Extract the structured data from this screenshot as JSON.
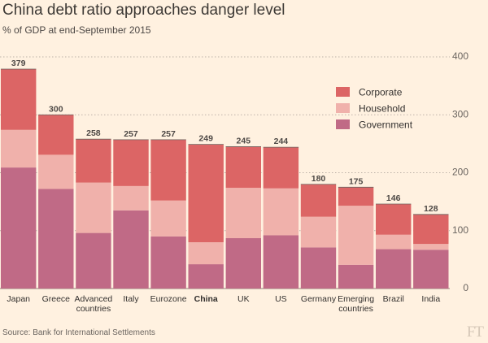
{
  "title": "China debt ratio approaches danger level",
  "subtitle": "% of GDP at end-September 2015",
  "source": "Source: Bank for International Settlements",
  "logo_text": "FT",
  "colors": {
    "Corporate": "#dc6565",
    "Household": "#f0b1ab",
    "Government": "#c06a86",
    "grid": "#bdb2a8",
    "text": "#33302e"
  },
  "chart_data": {
    "type": "bar",
    "stacked": true,
    "categories": [
      "Japan",
      "Greece",
      "Advanced countries",
      "Italy",
      "Eurozone",
      "China",
      "UK",
      "US",
      "Germany",
      "Emerging countries",
      "Brazil",
      "India"
    ],
    "category_lines": [
      [
        "Japan"
      ],
      [
        "Greece"
      ],
      [
        "Advanced",
        "countries"
      ],
      [
        "Italy"
      ],
      [
        "Eurozone"
      ],
      [
        "China"
      ],
      [
        "UK"
      ],
      [
        "US"
      ],
      [
        "Germany"
      ],
      [
        "Emerging",
        "countries"
      ],
      [
        "Brazil"
      ],
      [
        "India"
      ]
    ],
    "highlight_category": "China",
    "totals": [
      379,
      300,
      258,
      257,
      257,
      249,
      245,
      244,
      180,
      175,
      146,
      128
    ],
    "series": [
      {
        "name": "Government",
        "values": [
          209,
          172,
          96,
          135,
          90,
          42,
          87,
          92,
          71,
          41,
          68,
          67
        ]
      },
      {
        "name": "Household",
        "values": [
          65,
          59,
          87,
          42,
          62,
          38,
          87,
          81,
          53,
          102,
          25,
          10
        ]
      },
      {
        "name": "Corporate",
        "values": [
          105,
          69,
          75,
          80,
          105,
          169,
          71,
          71,
          56,
          32,
          53,
          51
        ]
      }
    ],
    "legend": [
      "Corporate",
      "Household",
      "Government"
    ],
    "legend_position": "top-right",
    "yticks": [
      0,
      100,
      200,
      300,
      400
    ],
    "ylim": [
      0,
      400
    ],
    "yaxis_side": "right",
    "grid": true
  }
}
